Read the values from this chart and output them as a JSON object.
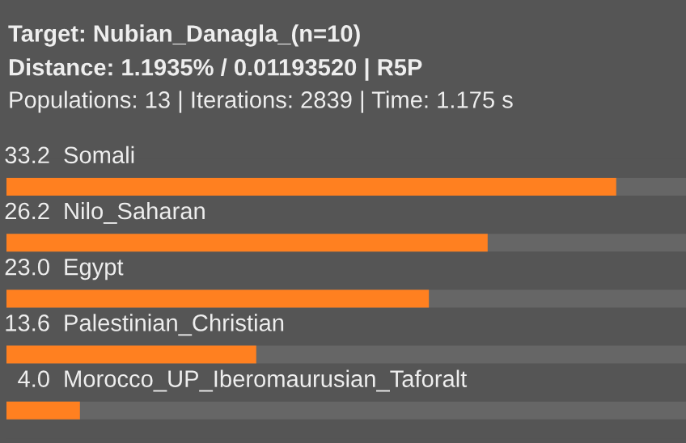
{
  "chart_data": {
    "type": "bar",
    "orientation": "horizontal",
    "title": "Target: Nubian_Danagla_(n=10)",
    "subtitle": "Distance: 1.1935% / 0.01193520 | R5P",
    "annotations": [
      "Populations: 13 | Iterations: 2839 | Time: 1.175 s"
    ],
    "categories": [
      "Somali",
      "Nilo_Saharan",
      "Egypt",
      "Palestinian_Christian",
      "Morocco_UP_Iberomaurusian_Taforalt"
    ],
    "series": [
      {
        "color": "#ff8020",
        "values": [
          33.2,
          26.2,
          23.0,
          13.6,
          4.0
        ],
        "value_labels": [
          "33.2",
          "26.2",
          "23.0",
          "13.6",
          "4.0"
        ]
      }
    ],
    "xlim": [
      0,
      37
    ]
  }
}
